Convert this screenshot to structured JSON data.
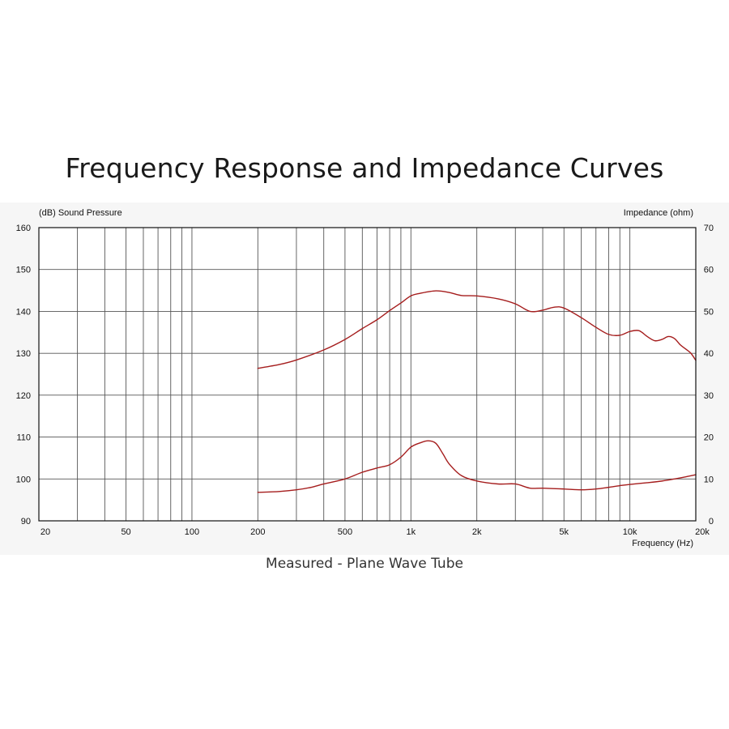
{
  "page": {
    "title": "Frequency Response and Impedance Curves",
    "caption": "Measured - Plane Wave Tube"
  },
  "chart_data": {
    "type": "line",
    "title": "Frequency Response and Impedance Curves",
    "subtitle": "Measured - Plane Wave Tube",
    "xlabel": "Frequency  (Hz)",
    "ylabel_left": "(dB)  Sound Pressure",
    "ylabel_right": "Impedance  (ohm)",
    "x_scale": "log",
    "xlim": [
      20,
      20000
    ],
    "ylim_left": [
      90,
      160
    ],
    "ylim_right": [
      0,
      70
    ],
    "grid": true,
    "x_tick_labels": [
      {
        "value": 20,
        "label": "20"
      },
      {
        "value": 50,
        "label": "50"
      },
      {
        "value": 100,
        "label": "100"
      },
      {
        "value": 200,
        "label": "200"
      },
      {
        "value": 500,
        "label": "500"
      },
      {
        "value": 1000,
        "label": "1k"
      },
      {
        "value": 2000,
        "label": "2k"
      },
      {
        "value": 5000,
        "label": "5k"
      },
      {
        "value": 10000,
        "label": "10k"
      },
      {
        "value": 20000,
        "label": "20k"
      }
    ],
    "left_tick_labels": [
      "90",
      "100",
      "110",
      "120",
      "130",
      "140",
      "150",
      "160"
    ],
    "right_tick_labels": [
      "0",
      "10",
      "20",
      "30",
      "40",
      "50",
      "60",
      "70"
    ],
    "line_color": "#a51d1d",
    "series": [
      {
        "axis": "left",
        "x": [
          200,
          250,
          300,
          400,
          500,
          600,
          700,
          800,
          900,
          1000,
          1100,
          1300,
          1500,
          1700,
          2000,
          2500,
          3000,
          3500,
          4000,
          4500,
          5000,
          6000,
          7000,
          8000,
          9000,
          10000,
          11000,
          12000,
          13000,
          14000,
          15000,
          16000,
          17000,
          18000,
          19000,
          20000
        ],
        "y": [
          126.4,
          127.3,
          128.4,
          130.8,
          133.3,
          135.9,
          138.0,
          140.2,
          142.0,
          143.7,
          144.3,
          144.9,
          144.5,
          143.8,
          143.7,
          143.0,
          141.8,
          140.0,
          140.3,
          141.0,
          140.8,
          138.5,
          136.2,
          134.5,
          134.3,
          135.2,
          135.4,
          134.0,
          133.0,
          133.3,
          134.0,
          133.5,
          132.0,
          131.0,
          130.0,
          128.3
        ]
      },
      {
        "axis": "right",
        "x": [
          200,
          250,
          300,
          350,
          400,
          500,
          600,
          700,
          800,
          900,
          1000,
          1100,
          1200,
          1300,
          1400,
          1500,
          1700,
          2000,
          2500,
          3000,
          3500,
          4000,
          5000,
          6000,
          7000,
          8000,
          9000,
          10000,
          12000,
          14000,
          16000,
          18000,
          20000
        ],
        "y": [
          6.8,
          7.0,
          7.4,
          8.0,
          8.8,
          10.0,
          11.6,
          12.6,
          13.4,
          15.2,
          17.6,
          18.6,
          19.1,
          18.5,
          16.0,
          13.5,
          10.8,
          9.5,
          8.8,
          8.8,
          7.8,
          7.8,
          7.6,
          7.4,
          7.6,
          8.0,
          8.4,
          8.7,
          9.1,
          9.5,
          10.0,
          10.5,
          11.0
        ]
      }
    ]
  }
}
